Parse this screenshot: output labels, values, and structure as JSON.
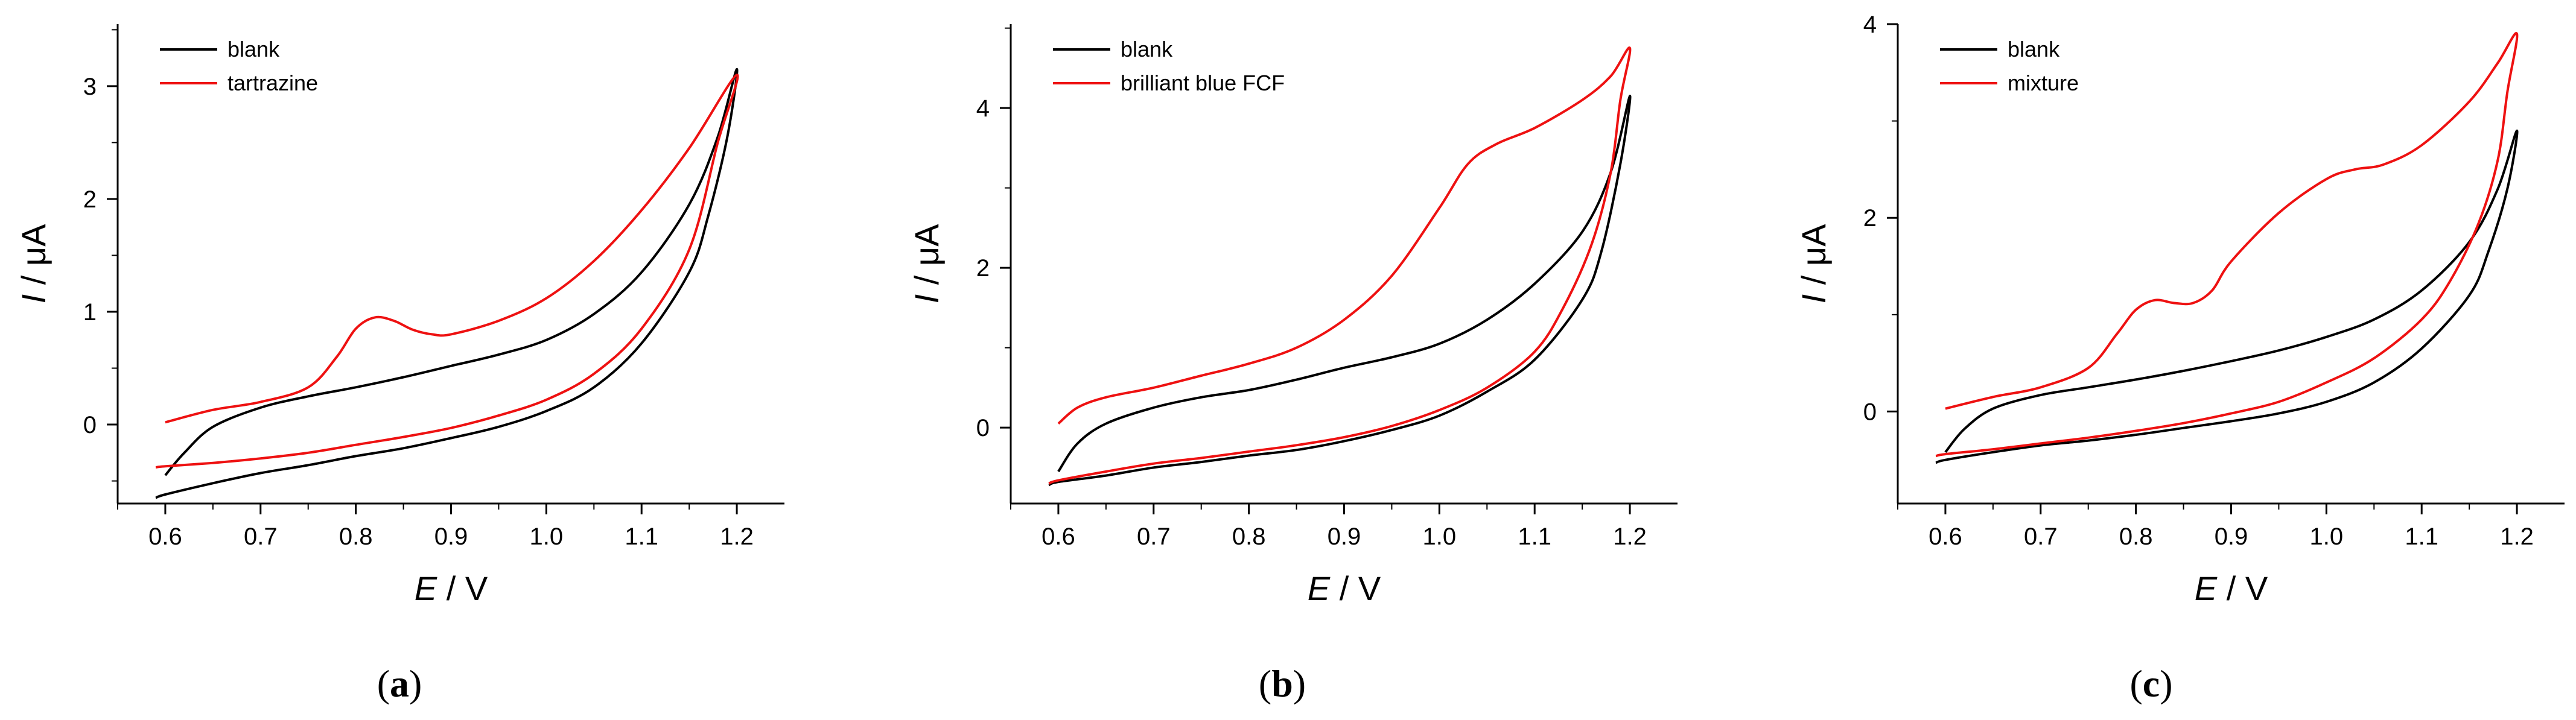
{
  "chart_data": [
    {
      "type": "line",
      "panel_label": "a",
      "xlabel_var": "E",
      "xlabel_unit": " / V",
      "ylabel_var": "I",
      "ylabel_unit": " / μA",
      "xlim": [
        0.55,
        1.25
      ],
      "ylim": [
        -0.7,
        3.55
      ],
      "xticks": [
        "0.6",
        "0.7",
        "0.8",
        "0.9",
        "1.0",
        "1.1",
        "1.2"
      ],
      "xtick_values": [
        0.6,
        0.7,
        0.8,
        0.9,
        1.0,
        1.1,
        1.2
      ],
      "yticks": [
        "0",
        "1",
        "2",
        "3"
      ],
      "ytick_values": [
        0,
        1,
        2,
        3
      ],
      "legend_position": "top-left",
      "series": [
        {
          "name": "blank",
          "color": "#000000",
          "points": [
            [
              0.6,
              -0.45
            ],
            [
              0.62,
              -0.25
            ],
            [
              0.65,
              -0.02
            ],
            [
              0.7,
              0.15
            ],
            [
              0.75,
              0.25
            ],
            [
              0.8,
              0.33
            ],
            [
              0.85,
              0.42
            ],
            [
              0.9,
              0.52
            ],
            [
              0.95,
              0.62
            ],
            [
              1.0,
              0.75
            ],
            [
              1.05,
              0.98
            ],
            [
              1.1,
              1.35
            ],
            [
              1.15,
              1.95
            ],
            [
              1.18,
              2.55
            ],
            [
              1.2,
              3.15
            ],
            [
              1.19,
              2.55
            ],
            [
              1.17,
              1.85
            ],
            [
              1.15,
              1.35
            ],
            [
              1.1,
              0.72
            ],
            [
              1.05,
              0.33
            ],
            [
              1.0,
              0.12
            ],
            [
              0.95,
              -0.02
            ],
            [
              0.9,
              -0.12
            ],
            [
              0.85,
              -0.21
            ],
            [
              0.8,
              -0.28
            ],
            [
              0.75,
              -0.36
            ],
            [
              0.7,
              -0.43
            ],
            [
              0.65,
              -0.52
            ],
            [
              0.6,
              -0.62
            ],
            [
              0.59,
              -0.65
            ]
          ]
        },
        {
          "name": "tartrazine",
          "color": "#ee1111",
          "points": [
            [
              0.6,
              0.02
            ],
            [
              0.65,
              0.13
            ],
            [
              0.7,
              0.2
            ],
            [
              0.75,
              0.33
            ],
            [
              0.78,
              0.6
            ],
            [
              0.8,
              0.85
            ],
            [
              0.82,
              0.95
            ],
            [
              0.84,
              0.92
            ],
            [
              0.86,
              0.84
            ],
            [
              0.88,
              0.8
            ],
            [
              0.9,
              0.8
            ],
            [
              0.95,
              0.92
            ],
            [
              1.0,
              1.12
            ],
            [
              1.05,
              1.45
            ],
            [
              1.1,
              1.9
            ],
            [
              1.15,
              2.45
            ],
            [
              1.2,
              3.1
            ],
            [
              1.18,
              2.5
            ],
            [
              1.15,
              1.55
            ],
            [
              1.1,
              0.85
            ],
            [
              1.05,
              0.45
            ],
            [
              1.0,
              0.22
            ],
            [
              0.95,
              0.08
            ],
            [
              0.9,
              -0.03
            ],
            [
              0.85,
              -0.11
            ],
            [
              0.8,
              -0.18
            ],
            [
              0.75,
              -0.25
            ],
            [
              0.7,
              -0.3
            ],
            [
              0.65,
              -0.34
            ],
            [
              0.6,
              -0.37
            ],
            [
              0.59,
              -0.38
            ]
          ]
        }
      ]
    },
    {
      "type": "line",
      "panel_label": "b",
      "xlabel_var": "E",
      "xlabel_unit": " / V",
      "ylabel_var": "I",
      "ylabel_unit": " / μA",
      "xlim": [
        0.55,
        1.25
      ],
      "ylim": [
        -0.95,
        5.05
      ],
      "xticks": [
        "0.6",
        "0.7",
        "0.8",
        "0.9",
        "1.0",
        "1.1",
        "1.2"
      ],
      "xtick_values": [
        0.6,
        0.7,
        0.8,
        0.9,
        1.0,
        1.1,
        1.2
      ],
      "yticks": [
        "0",
        "2",
        "4"
      ],
      "ytick_values": [
        0,
        2,
        4
      ],
      "legend_position": "top-left",
      "series": [
        {
          "name": "blank",
          "color": "#000000",
          "points": [
            [
              0.6,
              -0.55
            ],
            [
              0.62,
              -0.2
            ],
            [
              0.65,
              0.05
            ],
            [
              0.7,
              0.25
            ],
            [
              0.75,
              0.38
            ],
            [
              0.8,
              0.47
            ],
            [
              0.85,
              0.6
            ],
            [
              0.9,
              0.75
            ],
            [
              0.95,
              0.88
            ],
            [
              1.0,
              1.05
            ],
            [
              1.05,
              1.35
            ],
            [
              1.1,
              1.8
            ],
            [
              1.15,
              2.45
            ],
            [
              1.18,
              3.2
            ],
            [
              1.2,
              4.15
            ],
            [
              1.19,
              3.3
            ],
            [
              1.17,
              2.2
            ],
            [
              1.15,
              1.6
            ],
            [
              1.1,
              0.85
            ],
            [
              1.05,
              0.45
            ],
            [
              1.0,
              0.15
            ],
            [
              0.95,
              -0.03
            ],
            [
              0.9,
              -0.17
            ],
            [
              0.85,
              -0.28
            ],
            [
              0.8,
              -0.35
            ],
            [
              0.75,
              -0.43
            ],
            [
              0.7,
              -0.5
            ],
            [
              0.65,
              -0.6
            ],
            [
              0.6,
              -0.68
            ],
            [
              0.59,
              -0.72
            ]
          ]
        },
        {
          "name": "brilliant blue FCF",
          "color": "#ee1111",
          "points": [
            [
              0.6,
              0.05
            ],
            [
              0.62,
              0.25
            ],
            [
              0.65,
              0.38
            ],
            [
              0.7,
              0.5
            ],
            [
              0.75,
              0.65
            ],
            [
              0.8,
              0.8
            ],
            [
              0.85,
              1.0
            ],
            [
              0.9,
              1.35
            ],
            [
              0.95,
              1.9
            ],
            [
              1.0,
              2.75
            ],
            [
              1.03,
              3.3
            ],
            [
              1.06,
              3.55
            ],
            [
              1.1,
              3.75
            ],
            [
              1.15,
              4.1
            ],
            [
              1.18,
              4.4
            ],
            [
              1.2,
              4.75
            ],
            [
              1.19,
              4.1
            ],
            [
              1.18,
              3.2
            ],
            [
              1.16,
              2.3
            ],
            [
              1.13,
              1.5
            ],
            [
              1.1,
              0.95
            ],
            [
              1.05,
              0.5
            ],
            [
              1.0,
              0.22
            ],
            [
              0.95,
              0.02
            ],
            [
              0.9,
              -0.12
            ],
            [
              0.85,
              -0.22
            ],
            [
              0.8,
              -0.3
            ],
            [
              0.75,
              -0.38
            ],
            [
              0.7,
              -0.45
            ],
            [
              0.65,
              -0.55
            ],
            [
              0.6,
              -0.66
            ],
            [
              0.59,
              -0.7
            ]
          ]
        }
      ]
    },
    {
      "type": "line",
      "panel_label": "c",
      "xlabel_var": "E",
      "xlabel_unit": " / V",
      "ylabel_var": "I",
      "ylabel_unit": " / μA",
      "xlim": [
        0.55,
        1.25
      ],
      "ylim": [
        -0.95,
        4.0
      ],
      "xticks": [
        "0.6",
        "0.7",
        "0.8",
        "0.9",
        "1.0",
        "1.1",
        "1.2"
      ],
      "xtick_values": [
        0.6,
        0.7,
        0.8,
        0.9,
        1.0,
        1.1,
        1.2
      ],
      "yticks": [
        "0",
        "2",
        "4"
      ],
      "ytick_values": [
        0,
        2,
        4
      ],
      "legend_position": "top-left",
      "series": [
        {
          "name": "blank",
          "color": "#000000",
          "points": [
            [
              0.6,
              -0.42
            ],
            [
              0.62,
              -0.18
            ],
            [
              0.65,
              0.03
            ],
            [
              0.7,
              0.17
            ],
            [
              0.75,
              0.25
            ],
            [
              0.8,
              0.33
            ],
            [
              0.85,
              0.42
            ],
            [
              0.9,
              0.52
            ],
            [
              0.95,
              0.63
            ],
            [
              1.0,
              0.77
            ],
            [
              1.05,
              0.95
            ],
            [
              1.1,
              1.25
            ],
            [
              1.15,
              1.75
            ],
            [
              1.18,
              2.3
            ],
            [
              1.2,
              2.9
            ],
            [
              1.19,
              2.3
            ],
            [
              1.17,
              1.65
            ],
            [
              1.15,
              1.2
            ],
            [
              1.1,
              0.65
            ],
            [
              1.05,
              0.3
            ],
            [
              1.0,
              0.1
            ],
            [
              0.95,
              -0.02
            ],
            [
              0.9,
              -0.1
            ],
            [
              0.85,
              -0.17
            ],
            [
              0.8,
              -0.24
            ],
            [
              0.75,
              -0.3
            ],
            [
              0.7,
              -0.35
            ],
            [
              0.65,
              -0.42
            ],
            [
              0.6,
              -0.5
            ],
            [
              0.59,
              -0.53
            ]
          ]
        },
        {
          "name": "mixture",
          "color": "#ee1111",
          "points": [
            [
              0.6,
              0.03
            ],
            [
              0.65,
              0.15
            ],
            [
              0.7,
              0.25
            ],
            [
              0.75,
              0.45
            ],
            [
              0.78,
              0.8
            ],
            [
              0.8,
              1.05
            ],
            [
              0.82,
              1.15
            ],
            [
              0.84,
              1.12
            ],
            [
              0.86,
              1.12
            ],
            [
              0.88,
              1.25
            ],
            [
              0.9,
              1.55
            ],
            [
              0.95,
              2.05
            ],
            [
              1.0,
              2.4
            ],
            [
              1.03,
              2.5
            ],
            [
              1.06,
              2.55
            ],
            [
              1.1,
              2.75
            ],
            [
              1.15,
              3.2
            ],
            [
              1.18,
              3.6
            ],
            [
              1.2,
              3.9
            ],
            [
              1.19,
              3.3
            ],
            [
              1.18,
              2.6
            ],
            [
              1.16,
              1.95
            ],
            [
              1.13,
              1.35
            ],
            [
              1.1,
              0.95
            ],
            [
              1.05,
              0.55
            ],
            [
              1.0,
              0.3
            ],
            [
              0.95,
              0.1
            ],
            [
              0.9,
              -0.02
            ],
            [
              0.85,
              -0.12
            ],
            [
              0.8,
              -0.2
            ],
            [
              0.75,
              -0.27
            ],
            [
              0.7,
              -0.33
            ],
            [
              0.65,
              -0.39
            ],
            [
              0.6,
              -0.44
            ],
            [
              0.59,
              -0.46
            ]
          ]
        }
      ]
    }
  ]
}
